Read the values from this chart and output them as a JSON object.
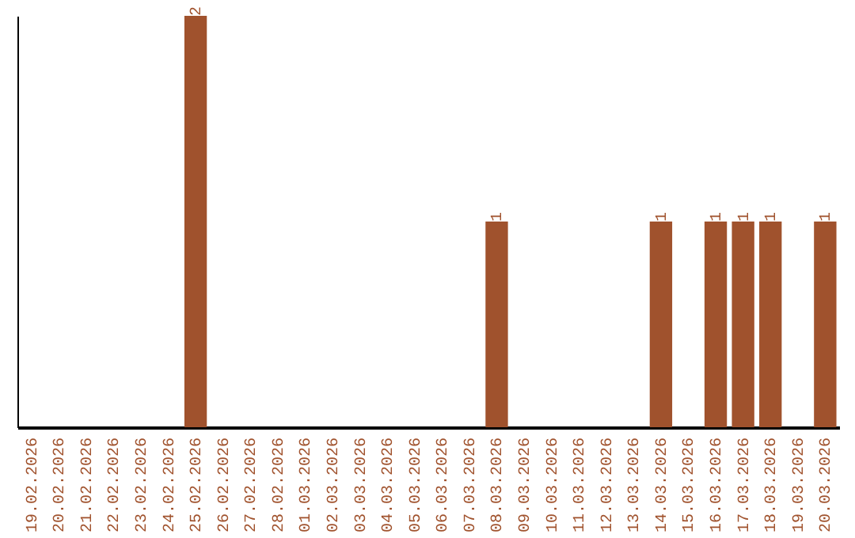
{
  "chart_data": {
    "type": "bar",
    "categories": [
      "19.02.2026",
      "20.02.2026",
      "21.02.2026",
      "22.02.2026",
      "23.02.2026",
      "24.02.2026",
      "25.02.2026",
      "26.02.2026",
      "27.02.2026",
      "28.02.2026",
      "01.03.2026",
      "02.03.2026",
      "03.03.2026",
      "04.03.2026",
      "05.03.2026",
      "06.03.2026",
      "07.03.2026",
      "08.03.2026",
      "09.03.2026",
      "10.03.2026",
      "11.03.2026",
      "12.03.2026",
      "13.03.2026",
      "14.03.2026",
      "15.03.2026",
      "16.03.2026",
      "17.03.2026",
      "18.03.2026",
      "19.03.2026",
      "20.03.2026"
    ],
    "values": [
      0,
      0,
      0,
      0,
      0,
      0,
      2,
      0,
      0,
      0,
      0,
      0,
      0,
      0,
      0,
      0,
      0,
      1,
      0,
      0,
      0,
      0,
      0,
      1,
      0,
      1,
      1,
      1,
      0,
      1
    ],
    "value_labels": [
      null,
      null,
      null,
      null,
      null,
      null,
      "2",
      null,
      null,
      null,
      null,
      null,
      null,
      null,
      null,
      null,
      null,
      "1",
      null,
      null,
      null,
      null,
      null,
      "1",
      null,
      "1",
      "1",
      "1",
      null,
      "1"
    ],
    "color": "#a0522d",
    "ylim": [
      0,
      2
    ],
    "tick_labels": "x",
    "grid": false
  }
}
